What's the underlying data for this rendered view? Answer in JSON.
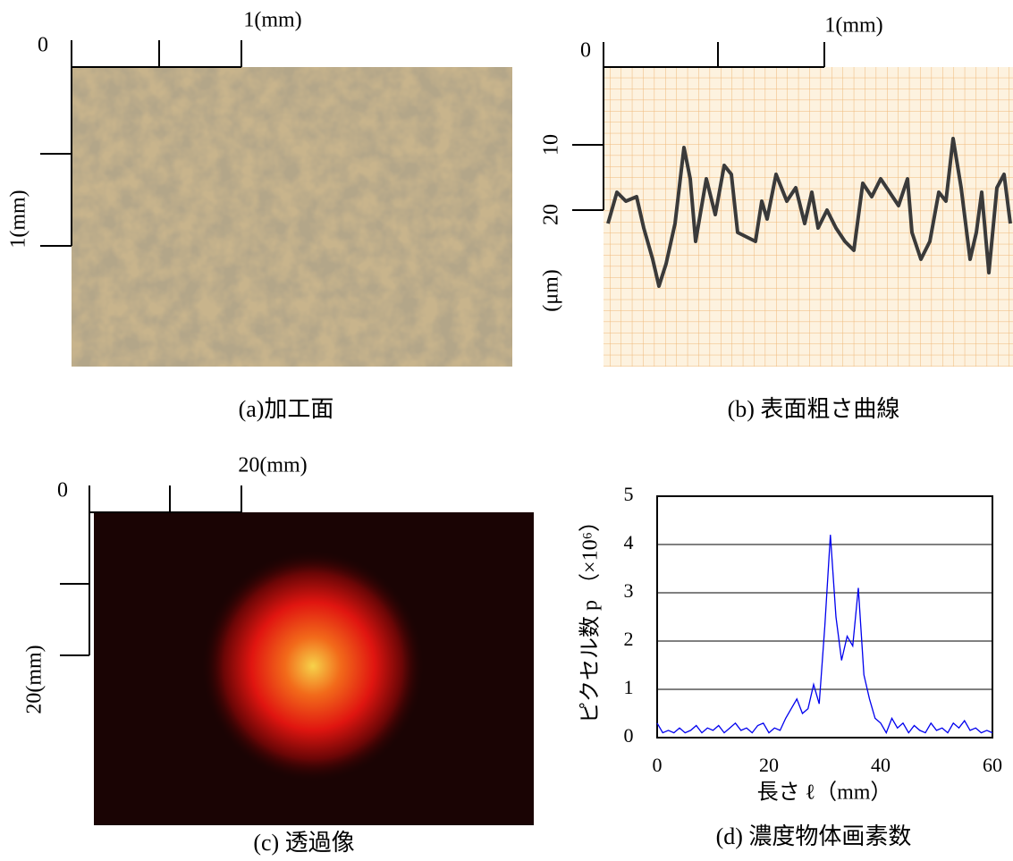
{
  "panels": [
    {
      "caption": "(a)加工面",
      "labels": [
        "0",
        "1(mm)",
        "1(mm)"
      ]
    },
    {
      "caption": "(b) 表面粗さ曲線",
      "labels": [
        "0",
        "1(mm)",
        "10",
        "20",
        "(μm)"
      ]
    },
    {
      "caption": "(c) 透過像",
      "labels": [
        "0",
        "20(mm)",
        "20(mm)"
      ]
    }
  ],
  "chart_data": {
    "type": "line",
    "title": "(d) 濃度物体画素数",
    "xlabel": "長さ ℓ（mm）",
    "ylabel": "ピクセル数 p （×10⁶）",
    "x": [
      0,
      1,
      2,
      3,
      4,
      5,
      6,
      7,
      8,
      9,
      10,
      11,
      12,
      13,
      14,
      15,
      16,
      17,
      18,
      19,
      20,
      21,
      22,
      23,
      24,
      25,
      26,
      27,
      28,
      29,
      30,
      31,
      32,
      33,
      34,
      35,
      36,
      37,
      38,
      39,
      40,
      41,
      42,
      43,
      44,
      45,
      46,
      47,
      48,
      49,
      50,
      51,
      52,
      53,
      54,
      55,
      56,
      57,
      58,
      59,
      60
    ],
    "series": [
      {
        "color": "#0000ee",
        "values": [
          0.3,
          0.1,
          0.15,
          0.1,
          0.2,
          0.1,
          0.15,
          0.25,
          0.1,
          0.2,
          0.15,
          0.25,
          0.1,
          0.2,
          0.3,
          0.15,
          0.2,
          0.1,
          0.25,
          0.3,
          0.1,
          0.2,
          0.15,
          0.4,
          0.6,
          0.8,
          0.5,
          0.6,
          1.1,
          0.7,
          2.3,
          4.2,
          2.5,
          1.6,
          2.1,
          1.9,
          3.1,
          1.3,
          0.8,
          0.4,
          0.3,
          0.1,
          0.4,
          0.2,
          0.3,
          0.1,
          0.25,
          0.15,
          0.1,
          0.3,
          0.15,
          0.2,
          0.1,
          0.3,
          0.2,
          0.35,
          0.15,
          0.2,
          0.1,
          0.15,
          0.1
        ]
      }
    ],
    "xlim": [
      0,
      60
    ],
    "xticks": [
      0,
      20,
      40,
      60
    ],
    "ylim": [
      0,
      5
    ],
    "yticks": [
      0,
      1,
      2,
      3,
      4,
      5
    ],
    "grid": true
  }
}
